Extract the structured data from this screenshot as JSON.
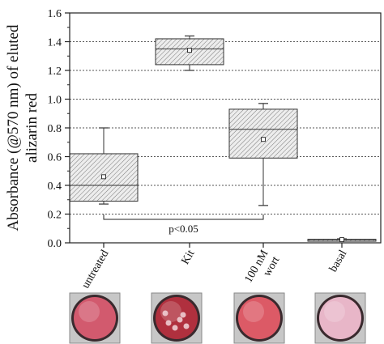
{
  "chart_data": {
    "type": "box",
    "ylabel_line1": "Absorbance (@570 nm) of eluted",
    "ylabel_line2": "alizarin red",
    "xlabel": "",
    "ylim": [
      0,
      1.6
    ],
    "yticks": [
      "0.0",
      "0.2",
      "0.4",
      "0.6",
      "0.8",
      "1.0",
      "1.2",
      "1.4",
      "1.6"
    ],
    "grid": "horizontal dotted at 0.2 steps",
    "categories": [
      "untreated",
      "Kit",
      "100 nM wort",
      "basal"
    ],
    "boxes": [
      {
        "category": "untreated",
        "whisker_low": 0.27,
        "q1": 0.29,
        "median": 0.4,
        "q3": 0.62,
        "whisker_high": 0.8,
        "mean": 0.46
      },
      {
        "category": "Kit",
        "whisker_low": 1.2,
        "q1": 1.24,
        "median": 1.35,
        "q3": 1.42,
        "whisker_high": 1.44,
        "mean": 1.34
      },
      {
        "category": "100 nM wort",
        "whisker_low": 0.26,
        "q1": 0.59,
        "median": 0.79,
        "q3": 0.93,
        "whisker_high": 0.97,
        "mean": 0.72
      },
      {
        "category": "basal",
        "whisker_low": 0.018,
        "q1": 0.02,
        "median": 0.022,
        "q3": 0.025,
        "whisker_high": 0.028,
        "mean": 0.022
      }
    ],
    "annotation": {
      "text": "p<0.05",
      "from": "untreated",
      "to": "100 nM wort"
    },
    "well_images": [
      {
        "category": "untreated",
        "tint": "#d25a6e"
      },
      {
        "category": "Kit",
        "tint": "#b0303e"
      },
      {
        "category": "100 nM wort",
        "tint": "#dc5a66"
      },
      {
        "category": "basal",
        "tint": "#e8b6c8"
      }
    ]
  }
}
